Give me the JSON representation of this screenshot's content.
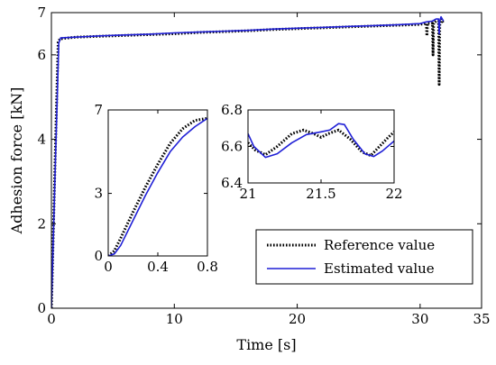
{
  "chart_data": [
    {
      "id": "main",
      "type": "line",
      "title": "",
      "xlabel": "Time [s]",
      "ylabel": "Adhesion force [kN]",
      "xlim": [
        0,
        35
      ],
      "ylim": [
        0,
        7
      ],
      "xticks": [
        0,
        10,
        20,
        30,
        35
      ],
      "yticks": [
        0,
        2,
        4,
        6,
        7
      ],
      "grid": false,
      "legend_position": "lower-right",
      "series": [
        {
          "name": "Reference value",
          "style": "dotted",
          "color": "#000000",
          "x": [
            0,
            0.3,
            0.55,
            0.7,
            2,
            4,
            6,
            8,
            10,
            12,
            14,
            16,
            18,
            20,
            22,
            24,
            26,
            28,
            30,
            30.5,
            30.55,
            30.6,
            31,
            31.05,
            31.1,
            31.3,
            31.5,
            31.55,
            31.6,
            31.7,
            31.9
          ],
          "y": [
            0,
            3.5,
            6.3,
            6.38,
            6.42,
            6.44,
            6.46,
            6.48,
            6.5,
            6.53,
            6.55,
            6.57,
            6.6,
            6.62,
            6.64,
            6.66,
            6.68,
            6.7,
            6.72,
            6.75,
            6.45,
            6.75,
            6.75,
            6.0,
            6.75,
            6.8,
            6.8,
            5.3,
            6.7,
            6.85,
            6.75
          ]
        },
        {
          "name": "Estimated value",
          "style": "solid",
          "color": "#1f1fd6",
          "x": [
            0,
            0.3,
            0.6,
            0.75,
            2,
            4,
            6,
            8,
            10,
            12,
            14,
            16,
            18,
            20,
            22,
            24,
            26,
            28,
            30,
            30.5,
            31,
            31.3,
            31.5,
            31.55,
            31.6,
            31.7,
            31.9
          ],
          "y": [
            0,
            3.2,
            6.28,
            6.4,
            6.42,
            6.45,
            6.47,
            6.49,
            6.52,
            6.54,
            6.56,
            6.58,
            6.61,
            6.63,
            6.65,
            6.67,
            6.69,
            6.71,
            6.74,
            6.78,
            6.8,
            6.85,
            6.85,
            6.5,
            6.8,
            6.9,
            6.8
          ]
        }
      ]
    },
    {
      "id": "inset-start",
      "type": "line",
      "title": "",
      "xlabel": "",
      "ylabel": "",
      "xlim": [
        0,
        0.8
      ],
      "ylim": [
        0,
        7
      ],
      "xticks": [
        0,
        0.4,
        0.8
      ],
      "yticks": [
        0,
        3,
        7
      ],
      "series": [
        {
          "name": "Reference value",
          "style": "dotted",
          "color": "#000000",
          "x": [
            0,
            0.05,
            0.1,
            0.2,
            0.3,
            0.4,
            0.5,
            0.6,
            0.7,
            0.8
          ],
          "y": [
            0,
            0.25,
            0.85,
            2.1,
            3.3,
            4.4,
            5.4,
            6.1,
            6.5,
            6.6
          ]
        },
        {
          "name": "Estimated value",
          "style": "solid",
          "color": "#1f1fd6",
          "x": [
            0,
            0.05,
            0.1,
            0.2,
            0.3,
            0.4,
            0.5,
            0.6,
            0.7,
            0.8
          ],
          "y": [
            0,
            0.1,
            0.5,
            1.7,
            2.9,
            4.0,
            5.0,
            5.7,
            6.2,
            6.6
          ]
        }
      ]
    },
    {
      "id": "inset-detail",
      "type": "line",
      "title": "",
      "xlabel": "",
      "ylabel": "",
      "xlim": [
        21,
        22
      ],
      "ylim": [
        6.4,
        6.8
      ],
      "xticks": [
        21,
        21.5,
        22
      ],
      "xtick_labels": [
        "21",
        "21.5",
        "22"
      ],
      "yticks": [
        6.4,
        6.6,
        6.8
      ],
      "ytick_labels": [
        "6.4",
        "6.6",
        "6.8"
      ],
      "series": [
        {
          "name": "Reference value",
          "style": "dotted",
          "color": "#000000",
          "x": [
            21,
            21.05,
            21.12,
            21.2,
            21.3,
            21.38,
            21.45,
            21.5,
            21.55,
            21.62,
            21.7,
            21.78,
            21.84,
            21.9,
            21.96,
            22
          ],
          "y": [
            6.62,
            6.58,
            6.555,
            6.6,
            6.67,
            6.69,
            6.67,
            6.65,
            6.67,
            6.69,
            6.64,
            6.57,
            6.55,
            6.6,
            6.65,
            6.68
          ]
        },
        {
          "name": "Estimated value",
          "style": "solid",
          "color": "#1f1fd6",
          "x": [
            21,
            21.04,
            21.12,
            21.2,
            21.3,
            21.4,
            21.5,
            21.56,
            21.62,
            21.66,
            21.72,
            21.8,
            21.86,
            21.92,
            22
          ],
          "y": [
            6.67,
            6.6,
            6.54,
            6.56,
            6.62,
            6.665,
            6.68,
            6.69,
            6.725,
            6.72,
            6.64,
            6.56,
            6.545,
            6.575,
            6.63
          ]
        }
      ]
    }
  ]
}
